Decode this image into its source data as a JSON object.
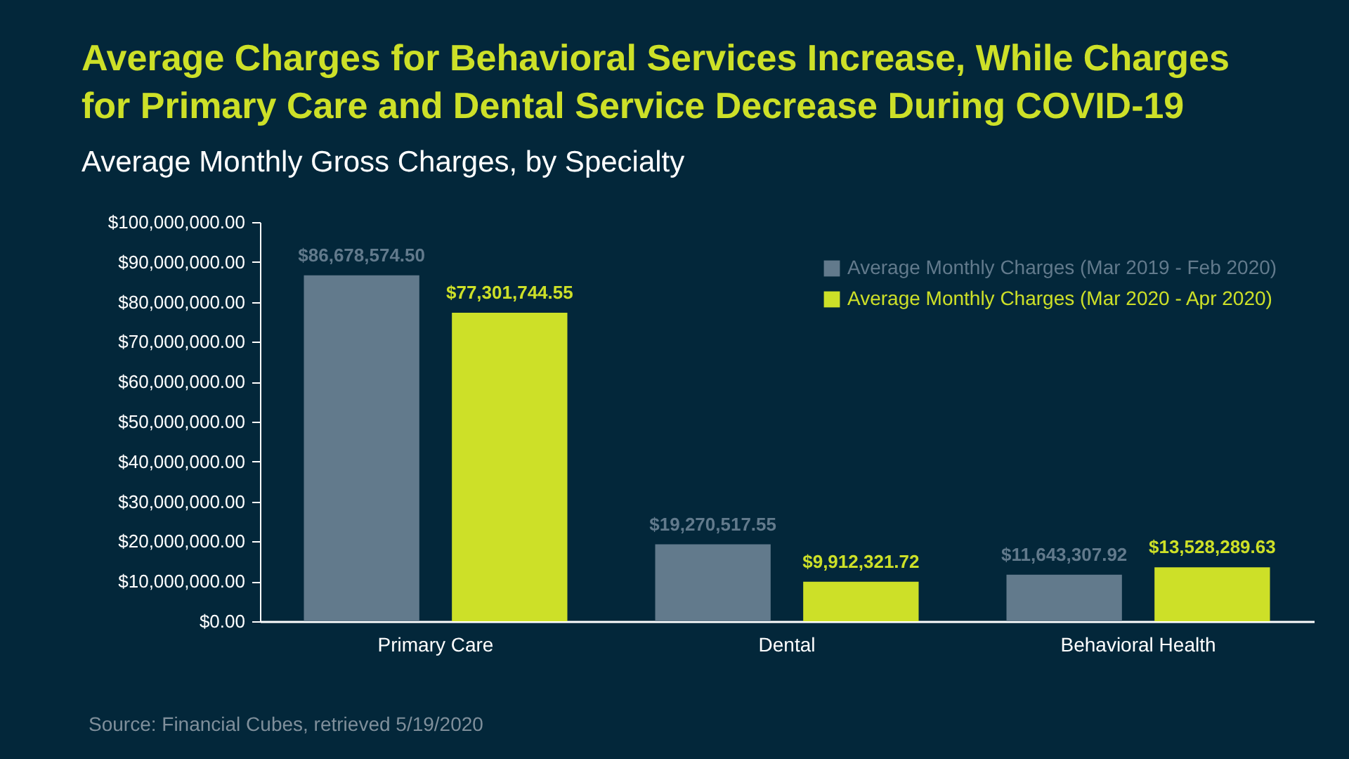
{
  "chart_data": {
    "type": "bar",
    "title": "Average Charges for Behavioral Services Increase, While Charges for Primary Care and Dental Service Decrease During COVID-19",
    "subtitle": "Average Monthly Gross Charges, by Specialty",
    "categories": [
      "Primary Care",
      "Dental",
      "Behavioral Health"
    ],
    "series": [
      {
        "name": "Average Monthly Charges (Mar 2019 - Feb 2020)",
        "color": "#627a8c",
        "values": [
          86678574.5,
          19270517.55,
          11643307.92
        ],
        "value_labels": [
          "$86,678,574.50",
          "$19,270,517.55",
          "$11,643,307.92"
        ]
      },
      {
        "name": "Average Monthly Charges (Mar 2020 - Apr 2020)",
        "color": "#cde028",
        "values": [
          77301744.55,
          9912321.72,
          13528289.63
        ],
        "value_labels": [
          "$77,301,744.55",
          "$9,912,321.72",
          "$13,528,289.63"
        ]
      }
    ],
    "ylim": [
      0,
      100000000
    ],
    "yticks": [
      {
        "value": 0,
        "label": "$0.00"
      },
      {
        "value": 10000000,
        "label": "$10,000,000.00"
      },
      {
        "value": 20000000,
        "label": "$20,000,000.00"
      },
      {
        "value": 30000000,
        "label": "$30,000,000.00"
      },
      {
        "value": 40000000,
        "label": "$40,000,000.00"
      },
      {
        "value": 50000000,
        "label": "$50,000,000.00"
      },
      {
        "value": 60000000,
        "label": "$60,000,000.00"
      },
      {
        "value": 70000000,
        "label": "$70,000,000.00"
      },
      {
        "value": 80000000,
        "label": "$80,000,000.00"
      },
      {
        "value": 90000000,
        "label": "$90,000,000.00"
      },
      {
        "value": 100000000,
        "label": "$100,000,000.00"
      }
    ],
    "legend": "top right",
    "annotations": [
      "Source: Financial Cubes, retrieved 5/19/2020"
    ]
  }
}
